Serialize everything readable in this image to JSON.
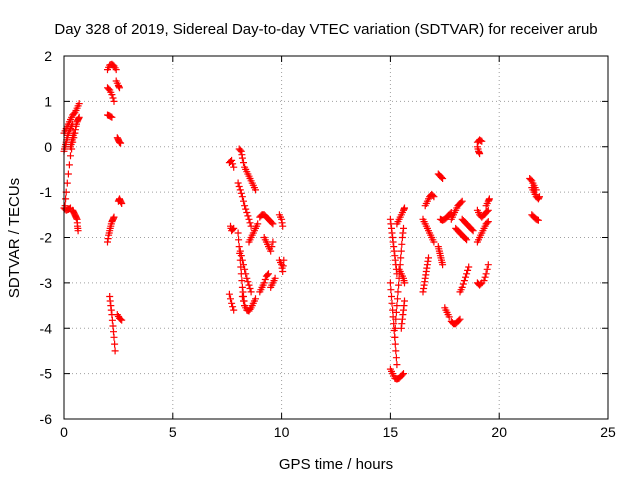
{
  "chart_data": {
    "type": "scatter",
    "title": "Day 328 of 2019, Sidereal Day-to-day VTEC variation (SDTVAR) for receiver arub",
    "xlabel": "GPS time / hours",
    "ylabel": "SDTVAR / TECUs",
    "xlim": [
      0,
      25
    ],
    "ylim": [
      -6,
      2
    ],
    "xticks": [
      0,
      5,
      10,
      15,
      20,
      25
    ],
    "yticks": [
      -6,
      -5,
      -4,
      -3,
      -2,
      -1,
      0,
      1,
      2
    ],
    "grid": true,
    "marker": "+",
    "marker_color": "#ff0000",
    "series": [
      {
        "name": "SDTVAR",
        "segments": [
          {
            "x": [
              0.0,
              0.1,
              0.2,
              0.3,
              0.4,
              0.5,
              0.6,
              0.7
            ],
            "y": [
              0.3,
              0.4,
              0.5,
              0.6,
              0.7,
              0.75,
              0.85,
              0.95
            ]
          },
          {
            "x": [
              0.0,
              0.05,
              0.1,
              0.15,
              0.2,
              0.3,
              0.4
            ],
            "y": [
              -0.1,
              0.0,
              0.1,
              0.2,
              0.3,
              0.4,
              0.5
            ]
          },
          {
            "x": [
              0.05,
              0.1,
              0.2,
              0.3,
              0.4,
              0.5,
              0.55,
              0.6,
              0.65,
              0.7
            ],
            "y": [
              -1.3,
              -1.0,
              -0.6,
              -0.2,
              0.1,
              0.3,
              0.45,
              0.55,
              0.6,
              0.65
            ]
          },
          {
            "x": [
              0.0,
              0.1,
              0.2,
              0.3
            ],
            "y": [
              -1.35,
              -1.4,
              -1.38,
              -1.35
            ]
          },
          {
            "x": [
              0.4,
              0.45,
              0.5,
              0.55,
              0.6,
              0.62,
              0.65
            ],
            "y": [
              -1.4,
              -1.45,
              -1.5,
              -1.55,
              -1.6,
              -1.75,
              -1.85
            ]
          },
          {
            "x": [
              0.3,
              0.35,
              0.4,
              0.45
            ],
            "y": [
              0.0,
              0.1,
              0.2,
              0.3
            ]
          },
          {
            "x": [
              2.0,
              2.1,
              2.2,
              2.3,
              2.4
            ],
            "y": [
              1.7,
              1.8,
              1.82,
              1.78,
              1.7
            ]
          },
          {
            "x": [
              2.0,
              2.1,
              2.2,
              2.3
            ],
            "y": [
              1.3,
              1.25,
              1.15,
              1.0
            ]
          },
          {
            "x": [
              2.4,
              2.5,
              2.55
            ],
            "y": [
              1.45,
              1.35,
              1.3
            ]
          },
          {
            "x": [
              2.0,
              2.1,
              2.2
            ],
            "y": [
              0.7,
              0.68,
              0.65
            ]
          },
          {
            "x": [
              2.45,
              2.5,
              2.55,
              2.6
            ],
            "y": [
              0.2,
              0.15,
              0.1,
              0.08
            ]
          },
          {
            "x": [
              2.5,
              2.55,
              2.6,
              2.65
            ],
            "y": [
              -1.2,
              -1.15,
              -1.2,
              -1.25
            ]
          },
          {
            "x": [
              2.0,
              2.05,
              2.1,
              2.15,
              2.2,
              2.25,
              2.3
            ],
            "y": [
              -2.1,
              -1.95,
              -1.85,
              -1.75,
              -1.65,
              -1.6,
              -1.55
            ]
          },
          {
            "x": [
              2.1,
              2.15,
              2.2,
              2.25,
              2.3,
              2.35
            ],
            "y": [
              -3.3,
              -3.5,
              -3.7,
              -3.95,
              -4.2,
              -4.5
            ]
          },
          {
            "x": [
              2.45,
              2.55,
              2.65
            ],
            "y": [
              -3.7,
              -3.78,
              -3.82
            ]
          },
          {
            "x": [
              7.6,
              7.7,
              7.8
            ],
            "y": [
              -0.35,
              -0.3,
              -0.45
            ]
          },
          {
            "x": [
              7.65,
              7.7,
              7.8
            ],
            "y": [
              -1.75,
              -1.85,
              -1.8
            ]
          },
          {
            "x": [
              7.6,
              7.7,
              7.8
            ],
            "y": [
              -3.25,
              -3.45,
              -3.6
            ]
          },
          {
            "x": [
              8.05,
              8.15,
              8.2,
              8.3,
              8.4,
              8.5,
              8.6,
              8.7,
              8.8
            ],
            "y": [
              -0.05,
              -0.1,
              -0.25,
              -0.45,
              -0.55,
              -0.65,
              -0.75,
              -0.85,
              -0.95
            ]
          },
          {
            "x": [
              8.0,
              8.1,
              8.2,
              8.3,
              8.4,
              8.5,
              8.6
            ],
            "y": [
              -0.8,
              -0.95,
              -1.1,
              -1.3,
              -1.45,
              -1.6,
              -1.75
            ]
          },
          {
            "x": [
              8.0,
              8.05,
              8.1,
              8.15,
              8.2,
              8.25,
              8.3
            ],
            "y": [
              -1.9,
              -2.2,
              -2.5,
              -2.8,
              -3.1,
              -3.3,
              -3.5
            ]
          },
          {
            "x": [
              8.2,
              8.3,
              8.4,
              8.5,
              8.6,
              8.7,
              8.8
            ],
            "y": [
              -3.3,
              -3.5,
              -3.6,
              -3.62,
              -3.55,
              -3.45,
              -3.35
            ]
          },
          {
            "x": [
              8.1,
              8.2,
              8.3,
              8.4,
              8.5,
              8.6
            ],
            "y": [
              -2.3,
              -2.5,
              -2.7,
              -2.9,
              -3.05,
              -3.2
            ]
          },
          {
            "x": [
              8.5,
              8.6,
              8.7,
              8.8,
              8.9
            ],
            "y": [
              -2.1,
              -2.0,
              -1.9,
              -1.8,
              -1.7
            ]
          },
          {
            "x": [
              9.0,
              9.1,
              9.2,
              9.3,
              9.4,
              9.5,
              9.6
            ],
            "y": [
              -1.55,
              -1.5,
              -1.5,
              -1.55,
              -1.6,
              -1.65,
              -1.7
            ]
          },
          {
            "x": [
              9.2,
              9.3,
              9.4,
              9.5,
              9.6
            ],
            "y": [
              -2.0,
              -2.1,
              -2.2,
              -2.3,
              -2.1
            ]
          },
          {
            "x": [
              9.0,
              9.1,
              9.2,
              9.3,
              9.4
            ],
            "y": [
              -3.2,
              -3.1,
              -3.0,
              -2.85,
              -2.8
            ]
          },
          {
            "x": [
              9.5,
              9.6,
              9.7
            ],
            "y": [
              -3.1,
              -3.0,
              -2.9
            ]
          },
          {
            "x": [
              9.9,
              10.0,
              10.05
            ],
            "y": [
              -1.5,
              -1.6,
              -1.75
            ]
          },
          {
            "x": [
              9.9,
              10.0,
              10.05,
              10.1
            ],
            "y": [
              -2.5,
              -2.6,
              -2.75,
              -2.5
            ]
          },
          {
            "x": [
              15.0,
              15.05,
              15.1,
              15.15,
              15.2,
              15.25,
              15.3
            ],
            "y": [
              -1.6,
              -1.8,
              -2.0,
              -2.2,
              -2.4,
              -2.6,
              -2.8
            ]
          },
          {
            "x": [
              15.0,
              15.05,
              15.1,
              15.15,
              15.2,
              15.25,
              15.3
            ],
            "y": [
              -3.0,
              -3.3,
              -3.6,
              -3.9,
              -4.2,
              -4.5,
              -4.8
            ]
          },
          {
            "x": [
              15.0,
              15.1,
              15.2,
              15.3,
              15.4,
              15.5,
              15.6
            ],
            "y": [
              -4.9,
              -5.0,
              -5.1,
              -5.12,
              -5.1,
              -5.05,
              -5.0
            ]
          },
          {
            "x": [
              15.2,
              15.25,
              15.3,
              15.35,
              15.4,
              15.45,
              15.5,
              15.55,
              15.6
            ],
            "y": [
              -4.2,
              -3.8,
              -3.5,
              -3.2,
              -2.9,
              -2.6,
              -2.3,
              -2.0,
              -1.8
            ]
          },
          {
            "x": [
              15.3,
              15.4,
              15.5,
              15.6,
              15.65
            ],
            "y": [
              -1.7,
              -1.6,
              -1.5,
              -1.4,
              -1.35
            ]
          },
          {
            "x": [
              15.4,
              15.5,
              15.6,
              15.65
            ],
            "y": [
              -2.7,
              -2.8,
              -2.9,
              -3.0
            ]
          },
          {
            "x": [
              15.5,
              15.55,
              15.6,
              15.65
            ],
            "y": [
              -4.0,
              -3.8,
              -3.6,
              -3.4
            ]
          },
          {
            "x": [
              16.5,
              16.55,
              16.6,
              16.65,
              16.7,
              16.75
            ],
            "y": [
              -3.2,
              -3.05,
              -2.9,
              -2.75,
              -2.6,
              -2.45
            ]
          },
          {
            "x": [
              16.5,
              16.6,
              16.7,
              16.8,
              16.9,
              17.0
            ],
            "y": [
              -1.6,
              -1.7,
              -1.8,
              -1.9,
              -2.0,
              -2.1
            ]
          },
          {
            "x": [
              16.6,
              16.7,
              16.8,
              16.9,
              17.0
            ],
            "y": [
              -1.3,
              -1.2,
              -1.1,
              -1.05,
              -1.1
            ]
          },
          {
            "x": [
              17.2,
              17.3,
              17.4
            ],
            "y": [
              -0.6,
              -0.65,
              -0.7
            ]
          },
          {
            "x": [
              17.2,
              17.25,
              17.3,
              17.35,
              17.4
            ],
            "y": [
              -2.2,
              -2.3,
              -2.4,
              -2.5,
              -2.6
            ]
          },
          {
            "x": [
              17.3,
              17.4,
              17.5,
              17.6,
              17.7,
              17.8
            ],
            "y": [
              -1.6,
              -1.62,
              -1.6,
              -1.55,
              -1.5,
              -1.45
            ]
          },
          {
            "x": [
              17.5,
              17.6,
              17.7
            ],
            "y": [
              -3.55,
              -3.65,
              -3.75
            ]
          },
          {
            "x": [
              17.8,
              17.9,
              18.0,
              18.1,
              18.2
            ],
            "y": [
              -3.85,
              -3.9,
              -3.9,
              -3.85,
              -3.8
            ]
          },
          {
            "x": [
              17.8,
              17.9,
              18.0,
              18.1,
              18.2,
              18.3
            ],
            "y": [
              -1.6,
              -1.5,
              -1.4,
              -1.3,
              -1.25,
              -1.2
            ]
          },
          {
            "x": [
              18.0,
              18.1,
              18.2,
              18.3,
              18.4,
              18.5
            ],
            "y": [
              -1.8,
              -1.85,
              -1.9,
              -1.95,
              -2.0,
              -2.05
            ]
          },
          {
            "x": [
              18.2,
              18.3,
              18.4,
              18.5,
              18.6
            ],
            "y": [
              -3.2,
              -3.1,
              -2.95,
              -2.8,
              -2.65
            ]
          },
          {
            "x": [
              18.3,
              18.4,
              18.5,
              18.6,
              18.7,
              18.8
            ],
            "y": [
              -1.6,
              -1.65,
              -1.7,
              -1.75,
              -1.8,
              -1.85
            ]
          },
          {
            "x": [
              19.0,
              19.1,
              19.2
            ],
            "y": [
              0.1,
              0.15,
              0.12
            ]
          },
          {
            "x": [
              19.0,
              19.05,
              19.1
            ],
            "y": [
              0.0,
              -0.1,
              -0.15
            ]
          },
          {
            "x": [
              19.0,
              19.1,
              19.2,
              19.3,
              19.4,
              19.5
            ],
            "y": [
              -1.4,
              -1.5,
              -1.55,
              -1.5,
              -1.45,
              -1.4
            ]
          },
          {
            "x": [
              19.4,
              19.5,
              19.55
            ],
            "y": [
              -1.3,
              -1.2,
              -1.15
            ]
          },
          {
            "x": [
              19.0,
              19.1,
              19.2,
              19.3,
              19.4,
              19.5
            ],
            "y": [
              -2.1,
              -2.0,
              -1.9,
              -1.8,
              -1.7,
              -1.65
            ]
          },
          {
            "x": [
              19.0,
              19.1,
              19.2
            ],
            "y": [
              -3.0,
              -3.05,
              -3.0
            ]
          },
          {
            "x": [
              19.3,
              19.4,
              19.5
            ],
            "y": [
              -2.95,
              -2.8,
              -2.6
            ]
          },
          {
            "x": [
              21.4,
              21.5,
              21.6,
              21.7
            ],
            "y": [
              -0.7,
              -0.75,
              -0.85,
              -0.95
            ]
          },
          {
            "x": [
              21.5,
              21.6,
              21.7,
              21.8,
              21.85
            ],
            "y": [
              -0.9,
              -1.0,
              -1.1,
              -1.15,
              -1.1
            ]
          },
          {
            "x": [
              21.5,
              21.6,
              21.7,
              21.8
            ],
            "y": [
              -1.5,
              -1.55,
              -1.6,
              -1.62
            ]
          }
        ]
      }
    ]
  }
}
